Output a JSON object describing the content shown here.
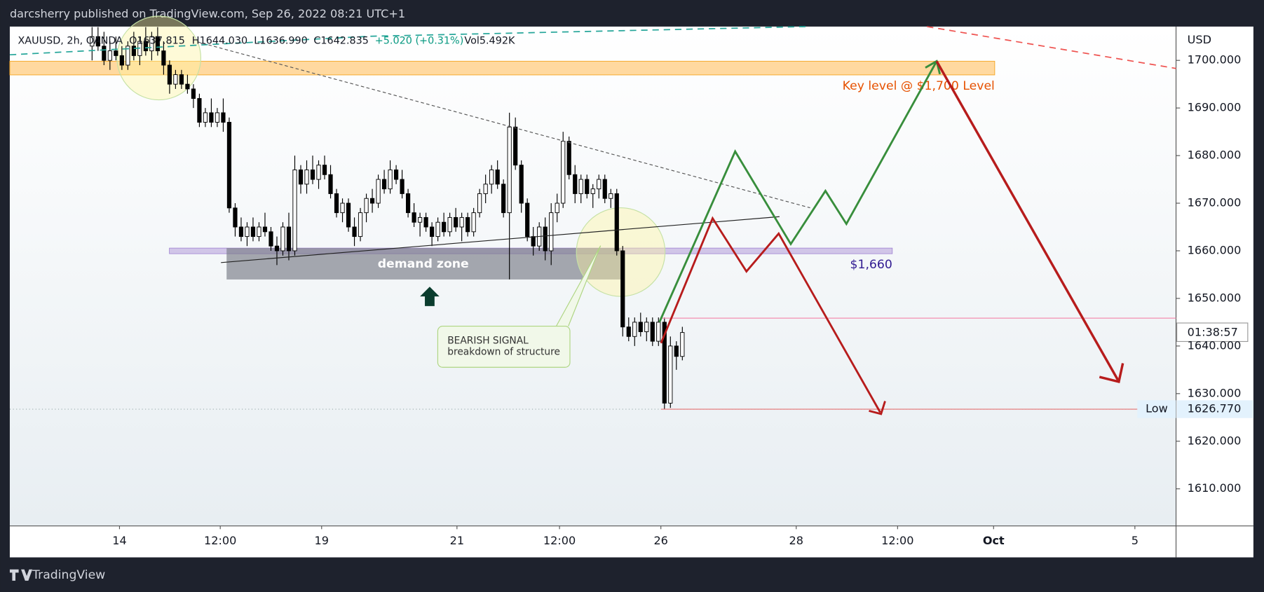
{
  "header": {
    "publisher": "darcsherry published on TradingView.com, Sep 26, 2022 08:21 UTC+1"
  },
  "legend": {
    "symbol": "XAUUSD, 2h, OANDA",
    "open": "O1637.815",
    "high": "H1644.030",
    "low": "L1636.990",
    "close": "C1642.835",
    "change": "+5.020 (+0.31%)",
    "volume": "Vol5.492K"
  },
  "annotations": {
    "key_level": "Key level @ $1,700 Level",
    "support": "$1,660",
    "zone": "demand zone",
    "signal_title": "BEARISH SIGNAL",
    "signal_text": "breakdown of structure",
    "low_tag": "Low",
    "countdown": "01:38:57"
  },
  "footer": {
    "brand": "TradingView"
  },
  "chart_data": {
    "type": "candlestick",
    "y_axis_label": "USD",
    "ylim": [
      1602.2,
      1707.1
    ],
    "yticks": [
      {
        "value": 1700,
        "label": "1700.000"
      },
      {
        "value": 1690,
        "label": "1690.000"
      },
      {
        "value": 1680,
        "label": "1680.000"
      },
      {
        "value": 1670,
        "label": "1670.000"
      },
      {
        "value": 1660,
        "label": "1660.000"
      },
      {
        "value": 1650,
        "label": "1650.000"
      },
      {
        "value": 1640,
        "label": "1640.000"
      },
      {
        "value": 1630,
        "label": "1630.000"
      },
      {
        "value": 1620,
        "label": "1620.000"
      },
      {
        "value": 1610,
        "label": "1610.000"
      }
    ],
    "low_marker": {
      "value": 1626.77,
      "label": "1626.770"
    },
    "xlim": [
      -13.8,
      181.8
    ],
    "xticks": [
      {
        "value": 4.6,
        "label": "14"
      },
      {
        "value": 21.5,
        "label": "12:00"
      },
      {
        "value": 38.5,
        "label": "19"
      },
      {
        "value": 61.2,
        "label": "21"
      },
      {
        "value": 78.4,
        "label": "12:00"
      },
      {
        "value": 95.4,
        "label": "26"
      },
      {
        "value": 118.1,
        "label": "28"
      },
      {
        "value": 135.1,
        "label": "12:00"
      },
      {
        "value": 151.2,
        "label": "Oct"
      },
      {
        "value": 174.9,
        "label": "5"
      }
    ],
    "up_color": "#ffffff",
    "down_color": "#000000",
    "candles": [
      [
        1703,
        1707,
        1700,
        1705
      ],
      [
        1705,
        1707,
        1702,
        1703
      ],
      [
        1703,
        1706,
        1699,
        1700
      ],
      [
        1700,
        1704,
        1698,
        1702
      ],
      [
        1702,
        1705,
        1700,
        1701
      ],
      [
        1701,
        1703,
        1698,
        1699
      ],
      [
        1699,
        1704,
        1698,
        1703
      ],
      [
        1703,
        1706,
        1700,
        1701
      ],
      [
        1701,
        1705,
        1699,
        1704
      ],
      [
        1704,
        1707,
        1701,
        1702
      ],
      [
        1702,
        1706,
        1700,
        1705
      ],
      [
        1705,
        1707,
        1701,
        1702
      ],
      [
        1702,
        1704,
        1697,
        1699
      ],
      [
        1699,
        1700,
        1693,
        1695
      ],
      [
        1695,
        1698,
        1694,
        1697
      ],
      [
        1697,
        1698,
        1694,
        1695
      ],
      [
        1695,
        1697,
        1693,
        1694
      ],
      [
        1694,
        1695,
        1690,
        1692
      ],
      [
        1692,
        1693,
        1686,
        1687
      ],
      [
        1687,
        1690,
        1686,
        1689
      ],
      [
        1689,
        1692,
        1686,
        1687
      ],
      [
        1687,
        1690,
        1686,
        1689
      ],
      [
        1689,
        1692,
        1685,
        1687
      ],
      [
        1687,
        1688,
        1668,
        1669
      ],
      [
        1669,
        1670,
        1663,
        1665
      ],
      [
        1665,
        1667,
        1662,
        1663
      ],
      [
        1663,
        1666,
        1661,
        1665
      ],
      [
        1665,
        1667,
        1662,
        1663
      ],
      [
        1663,
        1666,
        1662,
        1665
      ],
      [
        1665,
        1668,
        1663,
        1664
      ],
      [
        1664,
        1665,
        1660,
        1661
      ],
      [
        1661,
        1663,
        1657,
        1660
      ],
      [
        1660,
        1666,
        1659,
        1665
      ],
      [
        1665,
        1668,
        1658,
        1660
      ],
      [
        1660,
        1680,
        1659,
        1677
      ],
      [
        1677,
        1678,
        1672,
        1674
      ],
      [
        1674,
        1679,
        1672,
        1677
      ],
      [
        1677,
        1680,
        1674,
        1675
      ],
      [
        1675,
        1679,
        1673,
        1678
      ],
      [
        1678,
        1680,
        1675,
        1676
      ],
      [
        1676,
        1678,
        1671,
        1672
      ],
      [
        1672,
        1673,
        1667,
        1668
      ],
      [
        1668,
        1671,
        1666,
        1670
      ],
      [
        1670,
        1671,
        1664,
        1665
      ],
      [
        1665,
        1667,
        1661,
        1663
      ],
      [
        1663,
        1669,
        1662,
        1668
      ],
      [
        1668,
        1672,
        1666,
        1671
      ],
      [
        1671,
        1673,
        1668,
        1670
      ],
      [
        1670,
        1676,
        1669,
        1675
      ],
      [
        1675,
        1677,
        1672,
        1673
      ],
      [
        1673,
        1679,
        1672,
        1677
      ],
      [
        1677,
        1678,
        1674,
        1675
      ],
      [
        1675,
        1677,
        1671,
        1672
      ],
      [
        1672,
        1673,
        1667,
        1668
      ],
      [
        1668,
        1670,
        1665,
        1666
      ],
      [
        1666,
        1668,
        1663,
        1667
      ],
      [
        1667,
        1668,
        1664,
        1665
      ],
      [
        1665,
        1666,
        1661,
        1663
      ],
      [
        1663,
        1667,
        1662,
        1666
      ],
      [
        1666,
        1668,
        1663,
        1664
      ],
      [
        1664,
        1668,
        1663,
        1667
      ],
      [
        1667,
        1669,
        1664,
        1665
      ],
      [
        1665,
        1668,
        1662,
        1667
      ],
      [
        1667,
        1668,
        1663,
        1664
      ],
      [
        1664,
        1669,
        1663,
        1668
      ],
      [
        1668,
        1673,
        1667,
        1672
      ],
      [
        1672,
        1676,
        1670,
        1674
      ],
      [
        1674,
        1678,
        1672,
        1677
      ],
      [
        1677,
        1679,
        1673,
        1674
      ],
      [
        1674,
        1675,
        1667,
        1668
      ],
      [
        1668,
        1689,
        1654,
        1686
      ],
      [
        1686,
        1688,
        1677,
        1678
      ],
      [
        1678,
        1679,
        1668,
        1670
      ],
      [
        1670,
        1671,
        1662,
        1663
      ],
      [
        1663,
        1665,
        1659,
        1661
      ],
      [
        1661,
        1666,
        1660,
        1665
      ],
      [
        1665,
        1667,
        1658,
        1660
      ],
      [
        1660,
        1670,
        1657,
        1668
      ],
      [
        1668,
        1672,
        1666,
        1670
      ],
      [
        1670,
        1685,
        1669,
        1683
      ],
      [
        1683,
        1684,
        1675,
        1676
      ],
      [
        1676,
        1678,
        1670,
        1672
      ],
      [
        1672,
        1676,
        1670,
        1675
      ],
      [
        1675,
        1676,
        1671,
        1672
      ],
      [
        1672,
        1674,
        1669,
        1673
      ],
      [
        1673,
        1676,
        1671,
        1675
      ],
      [
        1675,
        1676,
        1670,
        1671
      ],
      [
        1671,
        1673,
        1669,
        1672
      ],
      [
        1672,
        1673,
        1659,
        1660
      ],
      [
        1660,
        1661,
        1642,
        1644
      ],
      [
        1644,
        1646,
        1641,
        1642
      ],
      [
        1642,
        1646,
        1640,
        1645
      ],
      [
        1645,
        1647,
        1642,
        1643
      ],
      [
        1643,
        1646,
        1641,
        1645
      ],
      [
        1645,
        1646,
        1640,
        1641
      ],
      [
        1641,
        1646,
        1640,
        1645
      ],
      [
        1645,
        1646,
        1626.77,
        1628
      ],
      [
        1628,
        1642,
        1627,
        1640
      ],
      [
        1640,
        1641,
        1635,
        1637.815
      ],
      [
        1637.815,
        1644.03,
        1636.99,
        1642.835
      ]
    ]
  }
}
